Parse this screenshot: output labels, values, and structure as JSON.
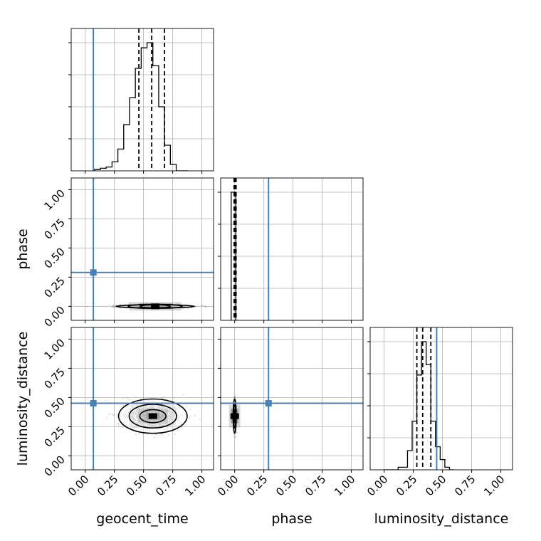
{
  "chart_data": {
    "type": "corner",
    "parameters": [
      "geocent_time",
      "phase",
      "luminosity_distance"
    ],
    "axis_labels": {
      "x": [
        "geocent_time",
        "phase",
        "luminosity_distance"
      ],
      "y": [
        "phase",
        "luminosity_distance"
      ]
    },
    "tick_values": [
      0.0,
      0.25,
      0.5,
      0.75,
      1.0
    ],
    "tick_labels": [
      "0.00",
      "0.25",
      "0.50",
      "0.75",
      "1.00"
    ],
    "xlim": [
      -0.12,
      1.1
    ],
    "ylim": [
      -0.12,
      1.1
    ],
    "grid": true,
    "truths": {
      "geocent_time": 0.07,
      "phase": 0.29,
      "luminosity_distance": 0.45
    },
    "truth_color": "#4682b4",
    "line_color": "#000000",
    "histograms": [
      {
        "parameter": "geocent_time",
        "bin_edges": [
          0.08,
          0.13,
          0.18,
          0.23,
          0.28,
          0.33,
          0.38,
          0.43,
          0.48,
          0.53,
          0.58,
          0.63,
          0.68,
          0.73,
          0.78,
          0.83,
          0.88
        ],
        "counts": [
          0.01,
          0.02,
          0.03,
          0.07,
          0.17,
          0.36,
          0.57,
          0.8,
          0.96,
          1.0,
          0.82,
          0.5,
          0.2,
          0.05,
          0.0,
          0.0
        ],
        "quantiles": [
          0.46,
          0.57,
          0.68
        ]
      },
      {
        "parameter": "phase",
        "bin_edges": [
          -0.03,
          -0.01,
          0.01,
          0.03
        ],
        "counts": [
          1.0,
          1.0,
          0.0
        ],
        "quantiles": [
          -0.005,
          0.003,
          0.012
        ]
      },
      {
        "parameter": "luminosity_distance",
        "bin_edges": [
          0.0,
          0.04,
          0.08,
          0.12,
          0.16,
          0.2,
          0.24,
          0.28,
          0.32,
          0.36,
          0.4,
          0.44,
          0.48,
          0.52,
          0.56,
          0.6
        ],
        "counts": [
          0.0,
          0.0,
          0.0,
          0.02,
          0.02,
          0.15,
          0.38,
          0.74,
          1.0,
          0.82,
          0.38,
          0.18,
          0.08,
          0.02,
          0.0
        ],
        "quantiles": [
          0.28,
          0.33,
          0.4
        ]
      }
    ],
    "posterior_2d": [
      {
        "x_param": "geocent_time",
        "y_param": "phase",
        "mean": [
          0.6,
          0.0
        ],
        "spread": [
          0.16,
          0.006
        ]
      },
      {
        "x_param": "geocent_time",
        "y_param": "luminosity_distance",
        "mean": [
          0.58,
          0.34
        ],
        "spread": [
          0.14,
          0.07
        ]
      },
      {
        "x_param": "phase",
        "y_param": "luminosity_distance",
        "mean": [
          0.0,
          0.34
        ],
        "spread": [
          0.006,
          0.07
        ]
      }
    ]
  }
}
